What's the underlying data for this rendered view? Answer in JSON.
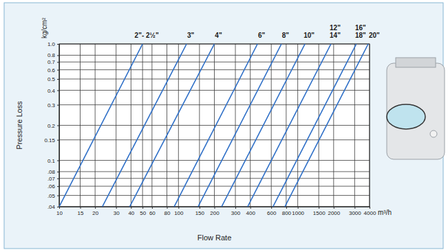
{
  "chart_data": {
    "type": "line",
    "x_label": "Flow Rate",
    "y_label": "Pressure Loss",
    "annotations": [
      "kg/cm²",
      "m³/h"
    ],
    "log": true,
    "grid": true,
    "color": "#2e6fc7",
    "xlim": [
      10,
      4000
    ],
    "ylim": [
      0.04,
      1.0
    ],
    "xticks": [
      10,
      15,
      20,
      30,
      40,
      50,
      60,
      80,
      100,
      150,
      200,
      300,
      400,
      600,
      800,
      1000,
      1500,
      2000,
      3000,
      4000
    ],
    "yticks": [
      {
        "value": 0.04,
        "label": ".04"
      },
      {
        "value": 0.05,
        "label": ".05"
      },
      {
        "value": 0.06,
        "label": ".06"
      },
      {
        "value": 0.07,
        "label": ".07"
      },
      {
        "value": 0.08,
        "label": ".08"
      },
      0.1,
      0.15,
      0.2,
      0.3,
      0.4,
      0.5,
      0.6,
      0.7,
      0.8,
      {
        "value": 1.0,
        "label": "1.0"
      }
    ],
    "series": [
      {
        "name": "2\"- 2½\"",
        "x": [
          10,
          50
        ],
        "values": [
          0.04,
          1.0
        ]
      },
      {
        "name": "3\"",
        "x": [
          23,
          117
        ],
        "values": [
          0.04,
          1.0
        ]
      },
      {
        "name": "4\"",
        "x": [
          39,
          200
        ],
        "values": [
          0.04,
          1.0
        ]
      },
      {
        "name": "6\"",
        "x": [
          92,
          460
        ],
        "values": [
          0.04,
          1.0
        ]
      },
      {
        "name": "8\"",
        "x": [
          146,
          730
        ],
        "values": [
          0.04,
          1.0
        ]
      },
      {
        "name": "10\"",
        "x": [
          230,
          1150
        ],
        "values": [
          0.04,
          1.0
        ]
      },
      {
        "name": "12\"\n14\"",
        "x": [
          380,
          1900
        ],
        "values": [
          0.04,
          1.0
        ]
      },
      {
        "name": "16\"\n18\"",
        "x": [
          620,
          3100
        ],
        "values": [
          0.04,
          1.0
        ]
      },
      {
        "name": "20\"",
        "x": [
          780,
          3900
        ],
        "values": [
          0.04,
          1.0
        ]
      }
    ]
  }
}
